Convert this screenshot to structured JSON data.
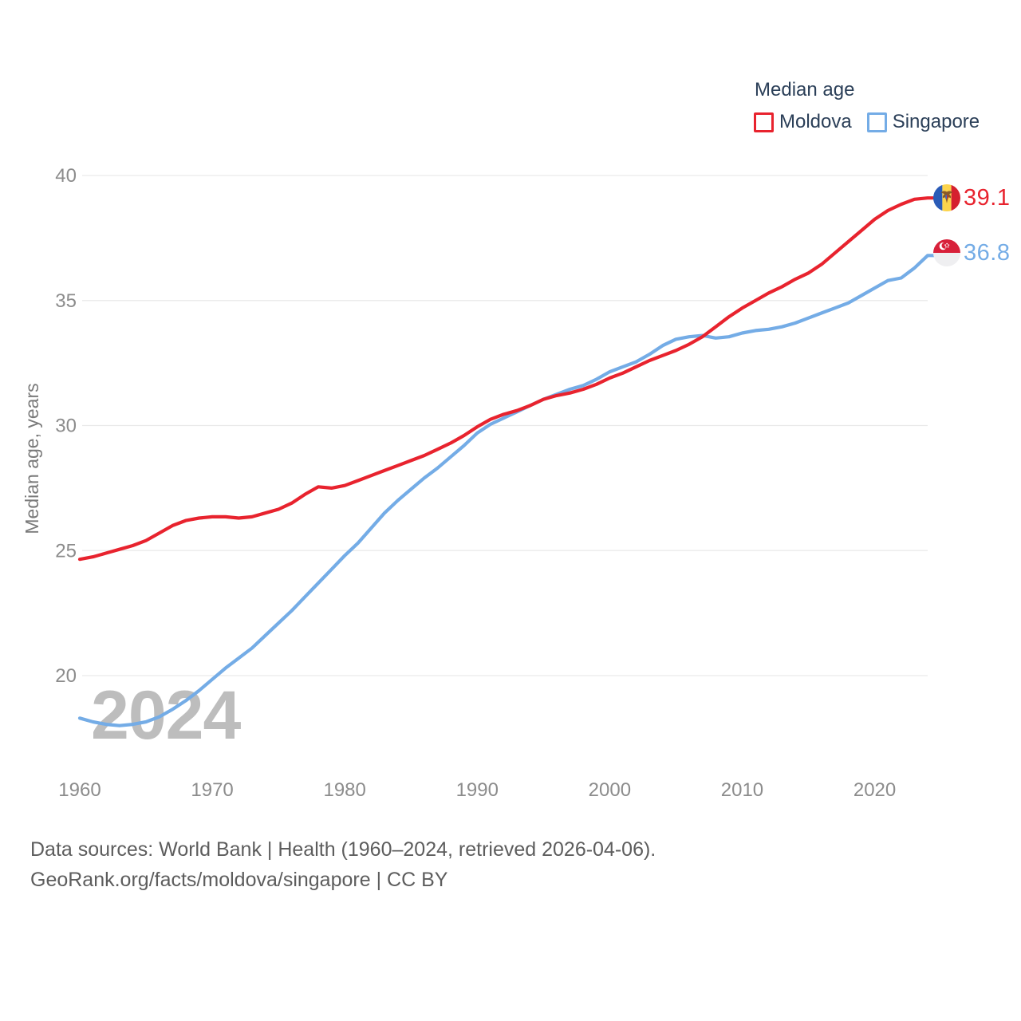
{
  "legend": {
    "title": "Median age",
    "items": [
      {
        "label": "Moldova",
        "color": "#e8232e"
      },
      {
        "label": "Singapore",
        "color": "#74ace6"
      }
    ]
  },
  "annotations": {
    "moldova_value": "39.1",
    "singapore_value": "36.8",
    "watermark": "2024"
  },
  "footer": {
    "line1": "Data sources: World Bank | Health (1960–2024, retrieved 2026-04-06).",
    "line2": "GeoRank.org/facts/moldova/singapore | CC BY"
  },
  "palette": {
    "moldova": "#e8232e",
    "singapore": "#74ace6",
    "gridline": "#e9e9e9",
    "tick_text": "#8c8c8c",
    "axis_title_text": "#7a7a7a",
    "watermark_text": "#bdbdbd",
    "legend_text": "#2b3f58",
    "footer_text": "#5d5d5d"
  },
  "chart_data": {
    "type": "line",
    "title": "Median age",
    "ylabel": "Median age, years",
    "xlabel": "",
    "ylim": [
      20,
      40
    ],
    "yticks": [
      20,
      25,
      30,
      35,
      40
    ],
    "xticks": [
      1960,
      1970,
      1980,
      1990,
      2000,
      2010,
      2020
    ],
    "x_range": [
      1960,
      2024
    ],
    "grid": "horizontal",
    "legend_position": "top-right",
    "x": [
      1960,
      1961,
      1962,
      1963,
      1964,
      1965,
      1966,
      1967,
      1968,
      1969,
      1970,
      1971,
      1972,
      1973,
      1974,
      1975,
      1976,
      1977,
      1978,
      1979,
      1980,
      1981,
      1982,
      1983,
      1984,
      1985,
      1986,
      1987,
      1988,
      1989,
      1990,
      1991,
      1992,
      1993,
      1994,
      1995,
      1996,
      1997,
      1998,
      1999,
      2000,
      2001,
      2002,
      2003,
      2004,
      2005,
      2006,
      2007,
      2008,
      2009,
      2010,
      2011,
      2012,
      2013,
      2014,
      2015,
      2016,
      2017,
      2018,
      2019,
      2020,
      2021,
      2022,
      2023,
      2024
    ],
    "series": [
      {
        "name": "Moldova",
        "color": "#e8232e",
        "end_label": "39.1",
        "values": [
          24.65,
          24.75,
          24.9,
          25.05,
          25.2,
          25.4,
          25.7,
          26.0,
          26.2,
          26.3,
          26.35,
          26.35,
          26.3,
          26.35,
          26.5,
          26.65,
          26.9,
          27.25,
          27.55,
          27.5,
          27.6,
          27.8,
          28.0,
          28.2,
          28.4,
          28.6,
          28.8,
          29.05,
          29.3,
          29.6,
          29.95,
          30.25,
          30.45,
          30.6,
          30.8,
          31.05,
          31.2,
          31.3,
          31.45,
          31.65,
          31.9,
          32.1,
          32.35,
          32.6,
          32.8,
          33.0,
          33.25,
          33.55,
          33.95,
          34.35,
          34.7,
          35.0,
          35.3,
          35.55,
          35.85,
          36.1,
          36.45,
          36.9,
          37.35,
          37.8,
          38.25,
          38.6,
          38.85,
          39.05,
          39.1
        ]
      },
      {
        "name": "Singapore",
        "color": "#74ace6",
        "end_label": "36.8",
        "values": [
          18.3,
          18.15,
          18.05,
          18.0,
          18.05,
          18.15,
          18.35,
          18.65,
          19.0,
          19.4,
          19.85,
          20.3,
          20.7,
          21.1,
          21.6,
          22.1,
          22.6,
          23.15,
          23.7,
          24.25,
          24.8,
          25.3,
          25.9,
          26.5,
          27.0,
          27.45,
          27.9,
          28.3,
          28.75,
          29.2,
          29.7,
          30.05,
          30.3,
          30.55,
          30.8,
          31.05,
          31.25,
          31.45,
          31.6,
          31.85,
          32.15,
          32.35,
          32.55,
          32.85,
          33.2,
          33.45,
          33.55,
          33.6,
          33.5,
          33.55,
          33.7,
          33.8,
          33.85,
          33.95,
          34.1,
          34.3,
          34.5,
          34.7,
          34.9,
          35.2,
          35.5,
          35.8,
          35.9,
          36.3,
          36.8
        ]
      }
    ]
  }
}
